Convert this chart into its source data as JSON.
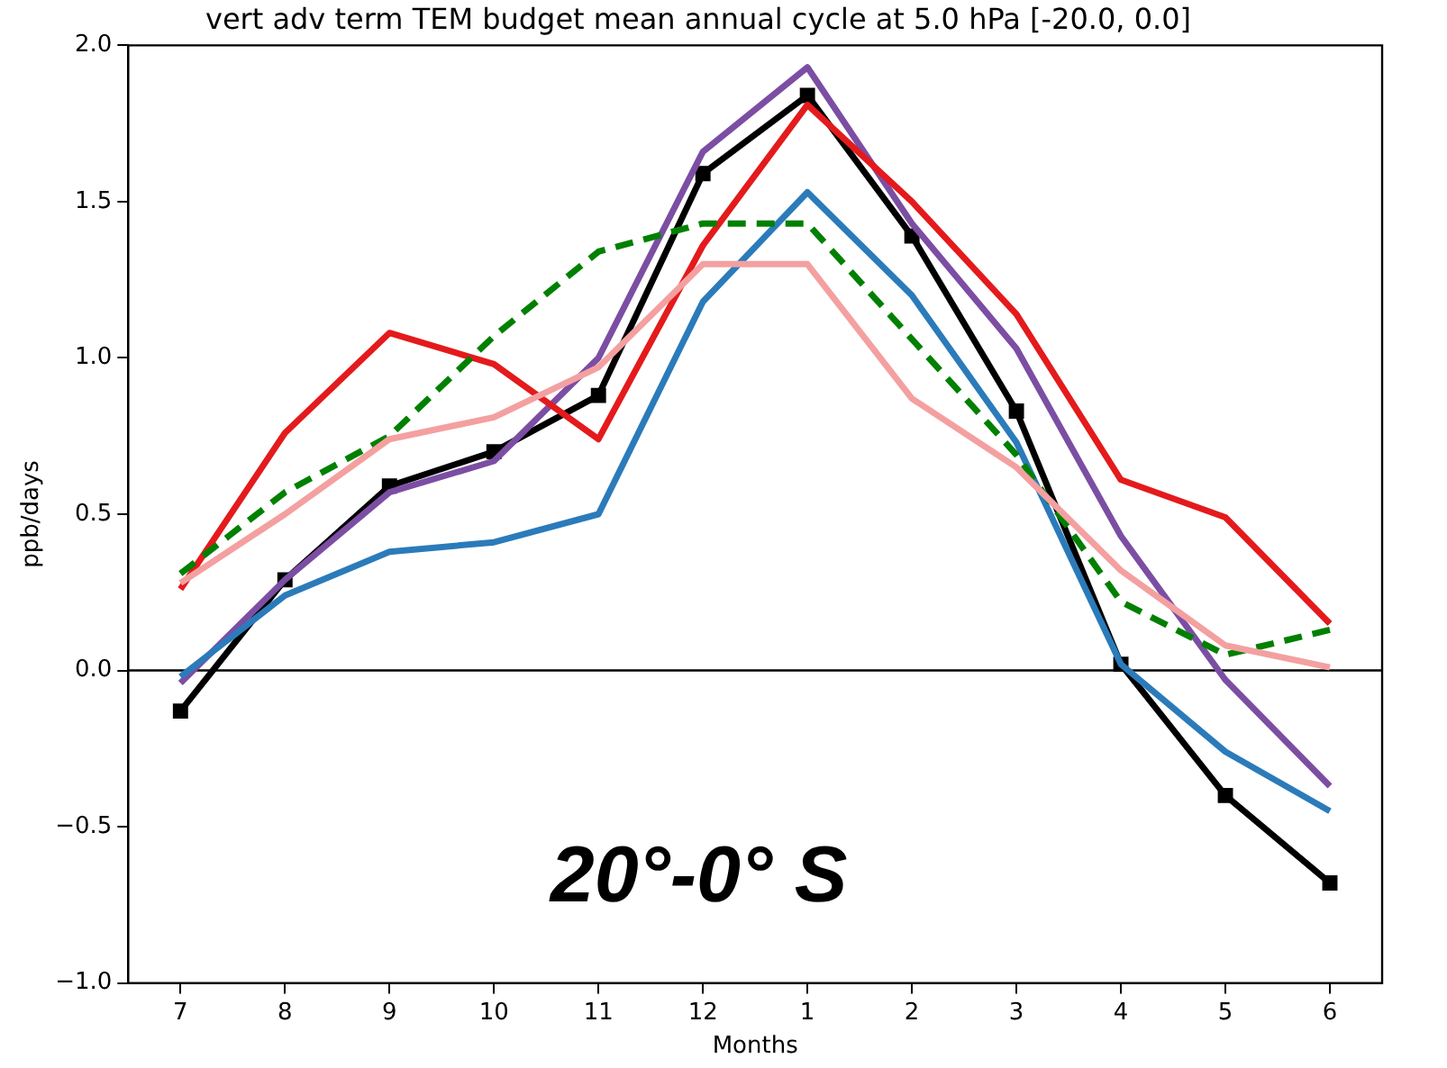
{
  "chart_data": {
    "type": "line",
    "title": "vert adv term TEM budget mean annual cycle at 5.0 hPa [-20.0, 0.0]",
    "xlabel": "Months",
    "ylabel": "ppb/days",
    "categories": [
      "7",
      "8",
      "9",
      "10",
      "11",
      "12",
      "1",
      "2",
      "3",
      "4",
      "5",
      "6"
    ],
    "ylim": [
      -1,
      2
    ],
    "yticks": [
      {
        "value": -1,
        "label": "−1.0"
      },
      {
        "value": -0.5,
        "label": "−0.5"
      },
      {
        "value": 0,
        "label": "0.0"
      },
      {
        "value": 0.5,
        "label": "0.5"
      },
      {
        "value": 1,
        "label": "1.0"
      },
      {
        "value": 1.5,
        "label": "1.5"
      },
      {
        "value": 2,
        "label": "2.0"
      }
    ],
    "grid": false,
    "legend": false,
    "series": [
      {
        "color": "#f4a0a0",
        "values": [
          0.28,
          0.5,
          0.74,
          0.81,
          0.97,
          1.3,
          1.3,
          0.87,
          0.65,
          0.32,
          0.08,
          0.01
        ]
      },
      {
        "color": "#008000",
        "line_style": "dashed",
        "values": [
          0.31,
          0.57,
          0.75,
          1.07,
          1.34,
          1.43,
          1.43,
          1.06,
          0.69,
          0.22,
          0.05,
          0.13
        ]
      },
      {
        "color": "#2b7bba",
        "values": [
          -0.02,
          0.24,
          0.38,
          0.41,
          0.5,
          1.18,
          1.53,
          1.2,
          0.73,
          0.02,
          -0.26,
          -0.45
        ]
      },
      {
        "color": "#e41a1c",
        "values": [
          0.26,
          0.76,
          1.08,
          0.98,
          0.74,
          1.36,
          1.81,
          1.5,
          1.14,
          0.61,
          0.49,
          0.15
        ]
      },
      {
        "color": "#7b4ea3",
        "values": [
          -0.04,
          0.29,
          0.57,
          0.67,
          1.0,
          1.66,
          1.93,
          1.43,
          1.03,
          0.43,
          -0.03,
          -0.37
        ]
      },
      {
        "color": "#000000",
        "marker": "square",
        "values": [
          -0.13,
          0.29,
          0.59,
          0.7,
          0.88,
          1.59,
          1.84,
          1.39,
          0.83,
          0.02,
          -0.4,
          -0.68
        ]
      }
    ],
    "ref_lines": [
      {
        "axis": "y",
        "value": 0,
        "color": "#000000"
      }
    ],
    "annotations": [
      "20°-0° S"
    ]
  }
}
